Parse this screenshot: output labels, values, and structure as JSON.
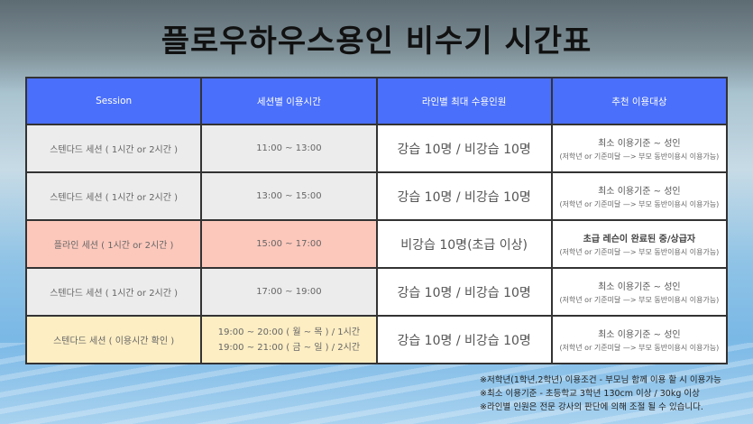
{
  "title": "플로우하우스용인 비수기 시간표",
  "headers": [
    "Session",
    "세션별 이용시간",
    "라인별 최대 수용인원",
    "추천 이용대상"
  ],
  "rows": [
    {
      "session": "스텐다드 세션 ( 1시간 or 2시간 )",
      "time": [
        "11:00 ~ 13:00"
      ],
      "capacity": "강습 10명   /  비강습 10명",
      "target": "최소 이용기준 ~ 성인",
      "target_note": "(저학년 or 기준미달  —> 부모 동반이용시 이용가능)",
      "color": "#ececec"
    },
    {
      "session": "스텐다드 세션 ( 1시간 or 2시간 )",
      "time": [
        "13:00 ~ 15:00"
      ],
      "capacity": "강습 10명   /  비강습 10명",
      "target": "최소 이용기준 ~ 성인",
      "target_note": "(저학년 or 기준미달  —> 부모 동반이용시 이용가능)",
      "color": "#ececec"
    },
    {
      "session": "플라인 세션 ( 1시간 or 2시간 )",
      "time": [
        "15:00 ~ 17:00"
      ],
      "capacity": "비강습 10명(초급 이상)",
      "target": "초급 레슨이 완료된 중/상급자",
      "target_note": "(저학년 or 기준미달  —> 부모 동반이용시 이용가능)",
      "color": "#fdc8bc"
    },
    {
      "session": "스텐다드 세션 ( 1시간 or 2시간 )",
      "time": [
        "17:00 ~ 19:00"
      ],
      "capacity": "강습 10명   /  비강습 10명",
      "target": "최소 이용기준 ~ 성인",
      "target_note": "(저학년 or 기준미달  —> 부모 동반이용시 이용가능)",
      "color": "#ececec"
    },
    {
      "session": "스텐다드 세션 ( 이용시간 확인 )",
      "time": [
        "19:00 ~ 20:00 ( 월 ~ 목 ) / 1시간",
        "19:00 ~ 21:00 ( 금 ~ 일 ) / 2시간"
      ],
      "capacity": "강습 10명   /  비강습 10명",
      "target": "최소 이용기준 ~ 성인",
      "target_note": "(저학년 or 기준미달  —> 부모 동반이용시 이용가능)",
      "color": "#fdeec3"
    }
  ],
  "notes": [
    "※저학년(1학년,2학년) 이용조건 - 부모님 함께 이용 할 시 이용가능",
    "※최소 이용기준 - 초등학교 3학년 130cm 이상 / 30kg 이상",
    "※라인별 인원은 전문 강사의 판단에 의해 조절 될 수 있습니다."
  ],
  "colors": {
    "header": "#4a6ffb",
    "standard": "#ececec",
    "flyline": "#fdc8bc",
    "evening": "#fdeec3"
  }
}
